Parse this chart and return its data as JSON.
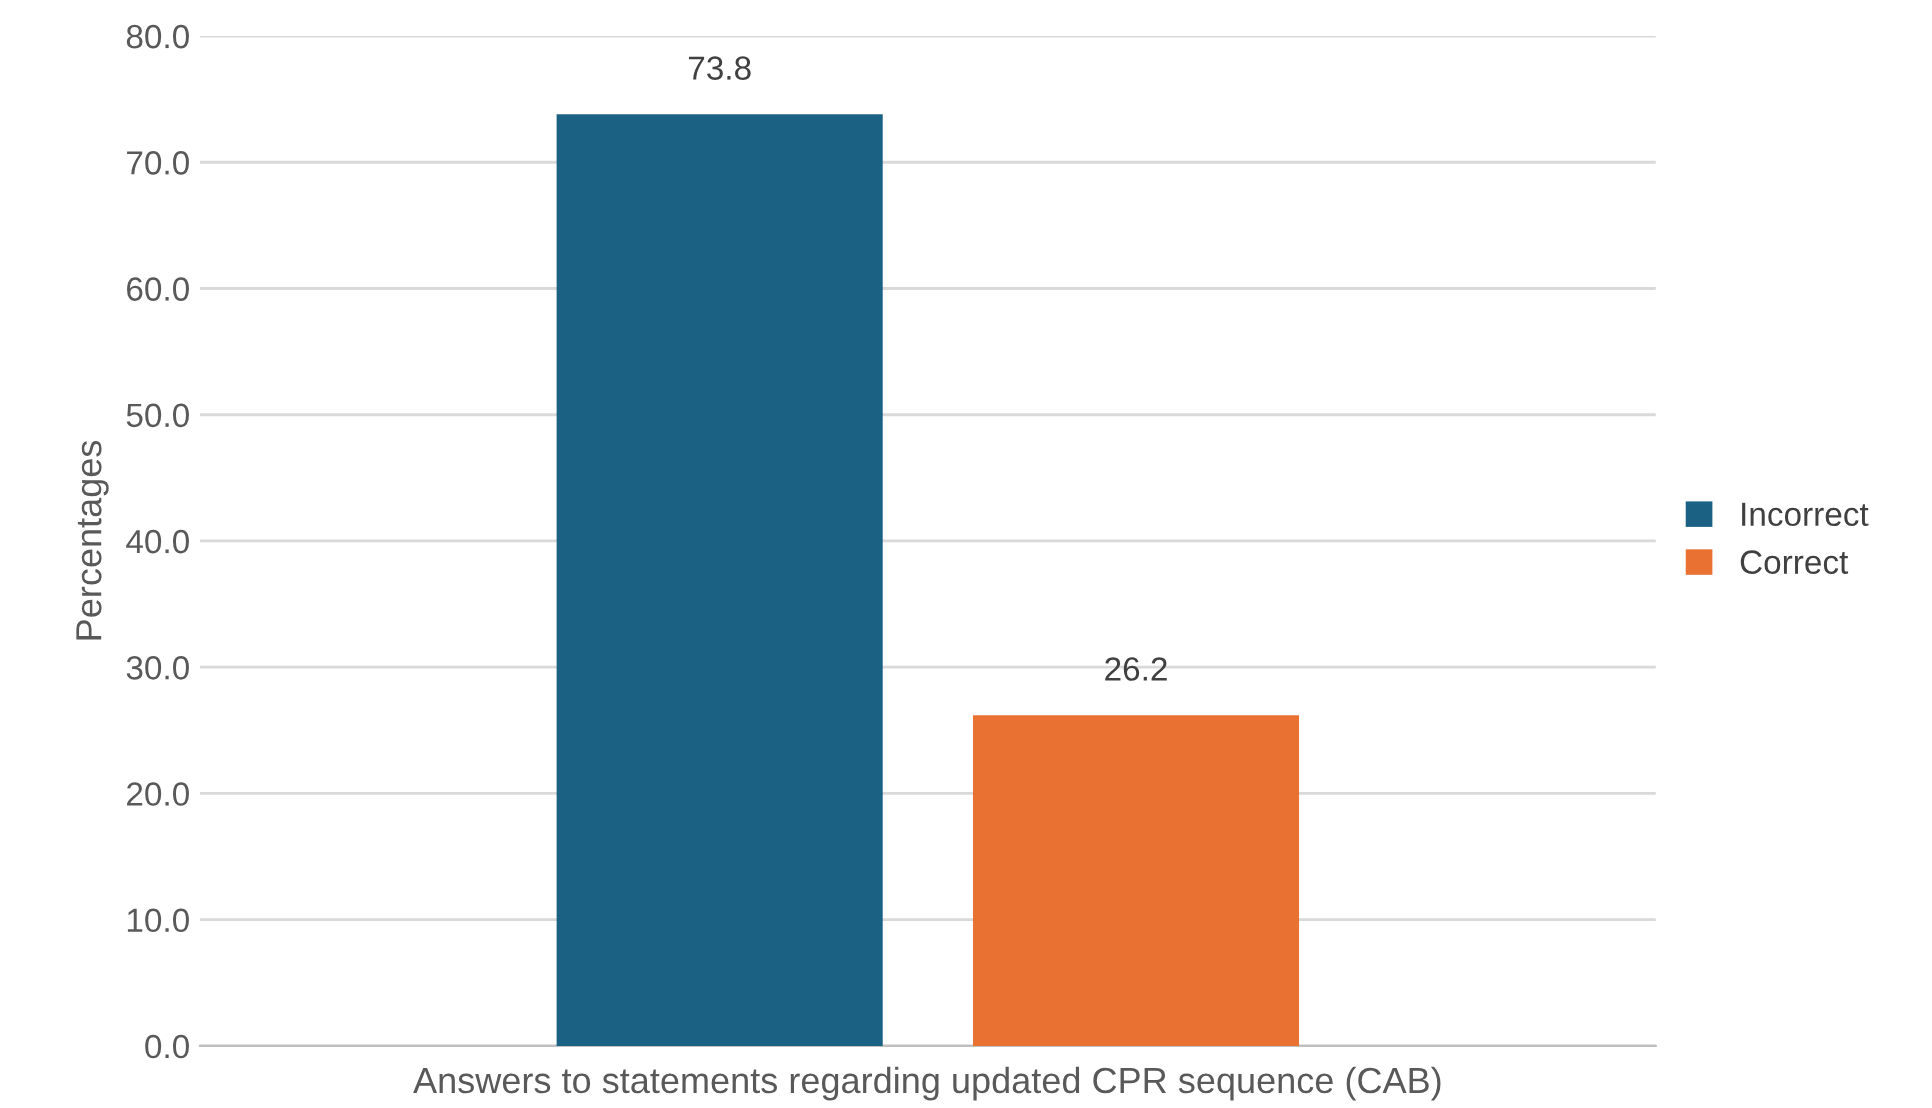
{
  "chart_data": {
    "type": "bar",
    "xlabel": "Answers to statements regarding updated CPR sequence (CAB)",
    "ylabel": "Percentages",
    "categories": [
      null
    ],
    "series": [
      {
        "name": "Incorrect",
        "color": "#1b6183",
        "values": [
          73.8
        ]
      },
      {
        "name": "Correct",
        "color": "#e97132",
        "values": [
          26.2
        ]
      }
    ],
    "ylim": [
      0,
      80
    ],
    "yticks": [
      {
        "value": 0,
        "label": "0.0"
      },
      {
        "value": 10,
        "label": "10.0"
      },
      {
        "value": 20,
        "label": "20.0"
      },
      {
        "value": 30,
        "label": "30.0"
      },
      {
        "value": 40,
        "label": "40.0"
      },
      {
        "value": 50,
        "label": "50.0"
      },
      {
        "value": 60,
        "label": "60.0"
      },
      {
        "value": 70,
        "label": "70.0"
      },
      {
        "value": 80,
        "label": "80.0"
      }
    ],
    "grid": "y",
    "legend": "right",
    "data_labels": true
  }
}
